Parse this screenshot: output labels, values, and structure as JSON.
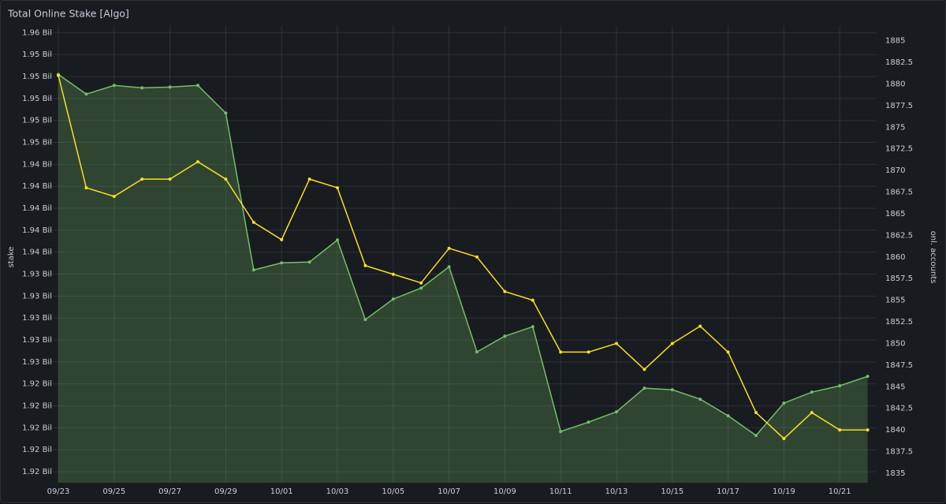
{
  "chart_data": {
    "type": "line",
    "title": "Total Online Stake [Algo]",
    "ylabel": "stake",
    "y2label": "onl. accounts",
    "categories": [
      "09/23",
      null,
      "09/25",
      null,
      "09/27",
      null,
      "09/29",
      null,
      "10/01",
      null,
      "10/03",
      null,
      "10/05",
      null,
      "10/07",
      null,
      "10/09",
      null,
      "10/11",
      null,
      "10/13",
      null,
      "10/15",
      null,
      "10/17",
      null,
      "10/19",
      null,
      "10/21",
      null
    ],
    "ylim": [
      1.915,
      1.9566
    ],
    "yticks": [
      {
        "value": 1.956,
        "label": "1.96 Bil"
      },
      {
        "value": 1.954,
        "label": "1.95 Bil"
      },
      {
        "value": 1.952,
        "label": "1.95 Bil"
      },
      {
        "value": 1.95,
        "label": "1.95 Bil"
      },
      {
        "value": 1.948,
        "label": "1.95 Bil"
      },
      {
        "value": 1.946,
        "label": "1.95 Bil"
      },
      {
        "value": 1.944,
        "label": "1.94 Bil"
      },
      {
        "value": 1.942,
        "label": "1.94 Bil"
      },
      {
        "value": 1.94,
        "label": "1.94 Bil"
      },
      {
        "value": 1.938,
        "label": "1.94 Bil"
      },
      {
        "value": 1.936,
        "label": "1.94 Bil"
      },
      {
        "value": 1.934,
        "label": "1.93 Bil"
      },
      {
        "value": 1.932,
        "label": "1.93 Bil"
      },
      {
        "value": 1.93,
        "label": "1.93 Bil"
      },
      {
        "value": 1.928,
        "label": "1.93 Bil"
      },
      {
        "value": 1.926,
        "label": "1.93 Bil"
      },
      {
        "value": 1.924,
        "label": "1.92 Bil"
      },
      {
        "value": 1.922,
        "label": "1.92 Bil"
      },
      {
        "value": 1.92,
        "label": "1.92 Bil"
      },
      {
        "value": 1.918,
        "label": "1.92 Bil"
      },
      {
        "value": 1.916,
        "label": "1.92 Bil"
      }
    ],
    "y2lim": [
      1833.9,
      1886.7
    ],
    "y2ticks": [
      1885,
      1882.5,
      1880,
      1877.5,
      1875,
      1872.5,
      1870,
      1867.5,
      1865,
      1862.5,
      1860,
      1857.5,
      1855,
      1852.5,
      1850,
      1847.5,
      1845,
      1842.5,
      1840,
      1837.5,
      1835
    ],
    "grid": true,
    "series": [
      {
        "name": "stake",
        "color": "#73bf69",
        "fill": true,
        "values": [
          1.95219,
          1.9504,
          1.95119,
          1.95097,
          1.95104,
          1.95119,
          1.94867,
          1.93438,
          1.93503,
          1.9351,
          1.93711,
          1.92986,
          1.93173,
          1.93273,
          1.93467,
          1.92692,
          1.92835,
          1.92921,
          1.91966,
          1.92052,
          1.92146,
          1.92361,
          1.92347,
          1.92261,
          1.9211,
          1.9193,
          1.92225,
          1.92325,
          1.92383,
          1.92469
        ]
      },
      {
        "name": "onl. accounts",
        "color": "#fade2a",
        "axis": "y2",
        "values": [
          1881,
          1868,
          1867,
          1869,
          1869,
          1871,
          1869,
          1864,
          1862,
          1869,
          1868,
          1859,
          1858,
          1857,
          1861,
          1860,
          1856,
          1855,
          1849,
          1849,
          1850,
          1847,
          1850,
          1852,
          1849,
          1842,
          1839,
          1842,
          1840,
          1840
        ]
      }
    ]
  }
}
